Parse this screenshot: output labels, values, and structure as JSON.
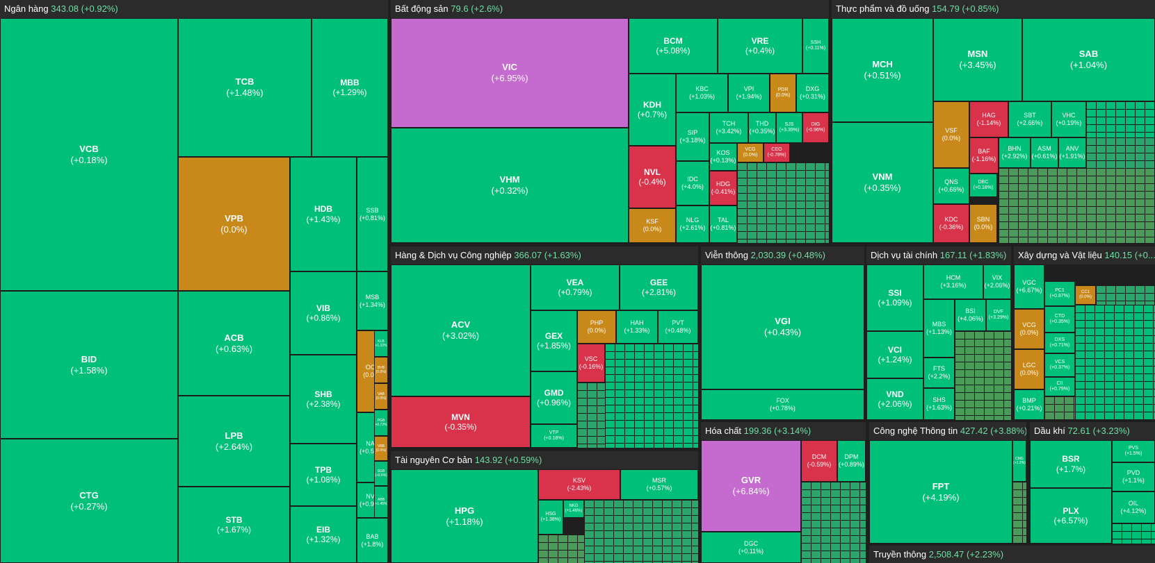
{
  "colors": {
    "up": "#00c079",
    "down": "#d8334a",
    "flat": "#c9891a",
    "ceiling": "#c56acf",
    "background": "#1f1f1f",
    "header_bg": "#2b2b2b",
    "header_value": "#6ee0a3"
  },
  "chart_data": {
    "type": "heatmap",
    "sectors": [
      {
        "key": "ngan-hang",
        "name": "Ngân hàng",
        "value": "343.08",
        "change": "(+0.92%)",
        "stocks": [
          {
            "symbol": "VCB",
            "change": "(+0.18%)",
            "status": "up"
          },
          {
            "symbol": "BID",
            "change": "(+1.58%)",
            "status": "up"
          },
          {
            "symbol": "CTG",
            "change": "(+0.27%)",
            "status": "up"
          },
          {
            "symbol": "TCB",
            "change": "(+1.48%)",
            "status": "up"
          },
          {
            "symbol": "MBB",
            "change": "(+1.29%)",
            "status": "up"
          },
          {
            "symbol": "VPB",
            "change": "(0.0%)",
            "status": "flat"
          },
          {
            "symbol": "HDB",
            "change": "(+1.43%)",
            "status": "up"
          },
          {
            "symbol": "SSB",
            "change": "(+0.81%)",
            "status": "up"
          },
          {
            "symbol": "ACB",
            "change": "(+0.63%)",
            "status": "up"
          },
          {
            "symbol": "VIB",
            "change": "(+0.86%)",
            "status": "up"
          },
          {
            "symbol": "MSB",
            "change": "(+1.34%)",
            "status": "up"
          },
          {
            "symbol": "OCB",
            "change": "(0.0%)",
            "status": "flat"
          },
          {
            "symbol": "LPB",
            "change": "(+2.64%)",
            "status": "up"
          },
          {
            "symbol": "SHB",
            "change": "(+2.38%)",
            "status": "up"
          },
          {
            "symbol": "NAB",
            "change": "(+0.59%)",
            "status": "up"
          },
          {
            "symbol": "TPB",
            "change": "(+1.08%)",
            "status": "up"
          },
          {
            "symbol": "STB",
            "change": "(+1.67%)",
            "status": "up"
          },
          {
            "symbol": "EIB",
            "change": "(+1.32%)",
            "status": "up"
          },
          {
            "symbol": "NVB",
            "change": "(+0.98%)",
            "status": "up"
          },
          {
            "symbol": "BAB",
            "change": "(+1.8%)",
            "status": "up"
          },
          {
            "symbol": "KLB",
            "change": "(+1.32%)",
            "status": "up"
          },
          {
            "symbol": "BVB",
            "change": "(0.0%)",
            "status": "flat"
          },
          {
            "symbol": "VAB",
            "change": "(0.0%)",
            "status": "flat"
          },
          {
            "symbol": "PGB",
            "change": "(+0.72%)",
            "status": "up"
          },
          {
            "symbol": "VBB",
            "change": "(0.0%)",
            "status": "flat"
          },
          {
            "symbol": "SGB",
            "change": "(+0.5%)",
            "status": "up"
          },
          {
            "symbol": "ABB",
            "change": "(+1.45%)",
            "status": "up"
          }
        ]
      },
      {
        "key": "bat-dong-san",
        "name": "Bất động sản",
        "value": "79.6",
        "change": "(+2.6%)",
        "stocks": [
          {
            "symbol": "VIC",
            "change": "(+6.95%)",
            "status": "ceiling"
          },
          {
            "symbol": "VHM",
            "change": "(+0.32%)",
            "status": "up"
          },
          {
            "symbol": "BCM",
            "change": "(+5.08%)",
            "status": "up"
          },
          {
            "symbol": "VRE",
            "change": "(+0.4%)",
            "status": "up"
          },
          {
            "symbol": "SSH",
            "change": "(+0.11%)",
            "status": "up"
          },
          {
            "symbol": "KDH",
            "change": "(+0.7%)",
            "status": "up"
          },
          {
            "symbol": "KBC",
            "change": "(+1.03%)",
            "status": "up"
          },
          {
            "symbol": "VPI",
            "change": "(+1.94%)",
            "status": "up"
          },
          {
            "symbol": "PDR",
            "change": "(0.0%)",
            "status": "flat"
          },
          {
            "symbol": "DXG",
            "change": "(+0.31%)",
            "status": "up"
          },
          {
            "symbol": "NVL",
            "change": "(-0.4%)",
            "status": "down"
          },
          {
            "symbol": "SIP",
            "change": "(+3.18%)",
            "status": "up"
          },
          {
            "symbol": "TCH",
            "change": "(+3.42%)",
            "status": "up"
          },
          {
            "symbol": "THD",
            "change": "(+0.35%)",
            "status": "up"
          },
          {
            "symbol": "SJS",
            "change": "(+3.39%)",
            "status": "up"
          },
          {
            "symbol": "DIG",
            "change": "(-0.96%)",
            "status": "down"
          },
          {
            "symbol": "KSF",
            "change": "(0.0%)",
            "status": "flat"
          },
          {
            "symbol": "IDC",
            "change": "(+4.0%)",
            "status": "up"
          },
          {
            "symbol": "NLG",
            "change": "(+2.61%)",
            "status": "up"
          },
          {
            "symbol": "KOS",
            "change": "(+0.13%)",
            "status": "up"
          },
          {
            "symbol": "VCG",
            "change": "(0.0%)",
            "status": "flat"
          },
          {
            "symbol": "CEO",
            "change": "(-0.78%)",
            "status": "down"
          },
          {
            "symbol": "HDG",
            "change": "(-0.41%)",
            "status": "down"
          },
          {
            "symbol": "TAL",
            "change": "(+0.81%)",
            "status": "up"
          }
        ]
      },
      {
        "key": "thuc-pham",
        "name": "Thực phẩm và đồ uống",
        "value": "154.79",
        "change": "(+0.85%)",
        "stocks": [
          {
            "symbol": "MCH",
            "change": "(+0.51%)",
            "status": "up"
          },
          {
            "symbol": "MSN",
            "change": "(+3.45%)",
            "status": "up"
          },
          {
            "symbol": "SAB",
            "change": "(+1.04%)",
            "status": "up"
          },
          {
            "symbol": "VNM",
            "change": "(+0.35%)",
            "status": "up"
          },
          {
            "symbol": "VSF",
            "change": "(0.0%)",
            "status": "flat"
          },
          {
            "symbol": "HAG",
            "change": "(-1.14%)",
            "status": "down"
          },
          {
            "symbol": "SBT",
            "change": "(+2.66%)",
            "status": "up"
          },
          {
            "symbol": "VHC",
            "change": "(+0.19%)",
            "status": "up"
          },
          {
            "symbol": "QNS",
            "change": "(+0.66%)",
            "status": "up"
          },
          {
            "symbol": "BAF",
            "change": "(-1.16%)",
            "status": "down"
          },
          {
            "symbol": "KDC",
            "change": "(-0.36%)",
            "status": "down"
          },
          {
            "symbol": "DBC",
            "change": "(+0.18%)",
            "status": "up"
          },
          {
            "symbol": "SBN",
            "change": "(0.0%)",
            "status": "flat"
          },
          {
            "symbol": "BHN",
            "change": "(+2.92%)",
            "status": "up"
          },
          {
            "symbol": "ASM",
            "change": "(+0.61%)",
            "status": "up"
          },
          {
            "symbol": "ANV",
            "change": "(+1.91%)",
            "status": "up"
          }
        ]
      },
      {
        "key": "cong-nghiep",
        "name": "Hàng & Dịch vụ Công nghiệp",
        "value": "366.07",
        "change": "(+1.63%)",
        "stocks": [
          {
            "symbol": "ACV",
            "change": "(+3.02%)",
            "status": "up"
          },
          {
            "symbol": "VEA",
            "change": "(+0.79%)",
            "status": "up"
          },
          {
            "symbol": "GEE",
            "change": "(+2.81%)",
            "status": "up"
          },
          {
            "symbol": "GEX",
            "change": "(+1.85%)",
            "status": "up"
          },
          {
            "symbol": "PHP",
            "change": "(0.0%)",
            "status": "flat"
          },
          {
            "symbol": "HAH",
            "change": "(+1.33%)",
            "status": "up"
          },
          {
            "symbol": "PVT",
            "change": "(+0.48%)",
            "status": "up"
          },
          {
            "symbol": "VSC",
            "change": "(-0.16%)",
            "status": "down"
          },
          {
            "symbol": "GMD",
            "change": "(+0.96%)",
            "status": "up"
          },
          {
            "symbol": "MVN",
            "change": "(-0.35%)",
            "status": "down"
          },
          {
            "symbol": "VTP",
            "change": "(+0.18%)",
            "status": "up"
          }
        ]
      },
      {
        "key": "vien-thong",
        "name": "Viễn thông",
        "value": "2,030.39",
        "change": "(+0.48%)",
        "stocks": [
          {
            "symbol": "VGI",
            "change": "(+0.43%)",
            "status": "up"
          },
          {
            "symbol": "FOX",
            "change": "(+0.78%)",
            "status": "up"
          }
        ]
      },
      {
        "key": "dich-vu-tai-chinh",
        "name": "Dịch vụ tài chính",
        "value": "167.11",
        "change": "(+1.83%)",
        "stocks": [
          {
            "symbol": "SSI",
            "change": "(+1.09%)",
            "status": "up"
          },
          {
            "symbol": "HCM",
            "change": "(+3.16%)",
            "status": "up"
          },
          {
            "symbol": "VIX",
            "change": "(+2.06%)",
            "status": "up"
          },
          {
            "symbol": "MBS",
            "change": "(+1.13%)",
            "status": "up"
          },
          {
            "symbol": "BSI",
            "change": "(+4.06%)",
            "status": "up"
          },
          {
            "symbol": "DVF",
            "change": "(+3.29%)",
            "status": "up"
          },
          {
            "symbol": "VCI",
            "change": "(+1.24%)",
            "status": "up"
          },
          {
            "symbol": "FTS",
            "change": "(+2.2%)",
            "status": "up"
          },
          {
            "symbol": "VND",
            "change": "(+2.06%)",
            "status": "up"
          },
          {
            "symbol": "SHS",
            "change": "(+1.63%)",
            "status": "up"
          }
        ]
      },
      {
        "key": "xay-dung",
        "name": "Xây dựng và Vật liệu",
        "value": "140.15",
        "change": "(+0...",
        "stocks": [
          {
            "symbol": "VGC",
            "change": "(+6.67%)",
            "status": "up"
          },
          {
            "symbol": "VCG",
            "change": "(0.0%)",
            "status": "flat"
          },
          {
            "symbol": "LGC",
            "change": "(0.0%)",
            "status": "flat"
          },
          {
            "symbol": "BMP",
            "change": "(+0.21%)",
            "status": "up"
          },
          {
            "symbol": "PC1",
            "change": "(+0.87%)",
            "status": "up"
          },
          {
            "symbol": "CTD",
            "change": "(+0.35%)",
            "status": "up"
          },
          {
            "symbol": "DXS",
            "change": "(+0.71%)",
            "status": "up"
          },
          {
            "symbol": "VCS",
            "change": "(+0.37%)",
            "status": "up"
          },
          {
            "symbol": "CII",
            "change": "(+0.79%)",
            "status": "up"
          },
          {
            "symbol": "CC1",
            "change": "(0.0%)",
            "status": "flat"
          }
        ]
      },
      {
        "key": "hoa-chat",
        "name": "Hóa chất",
        "value": "199.36",
        "change": "(+3.14%)",
        "stocks": [
          {
            "symbol": "GVR",
            "change": "(+6.84%)",
            "status": "ceiling"
          },
          {
            "symbol": "DCM",
            "change": "(-0.59%)",
            "status": "down"
          },
          {
            "symbol": "DPM",
            "change": "(+0.89%)",
            "status": "up"
          },
          {
            "symbol": "DGC",
            "change": "(+0.11%)",
            "status": "up"
          }
        ]
      },
      {
        "key": "cong-nghe",
        "name": "Công nghệ Thông tin",
        "value": "427.42",
        "change": "(+3.88%)",
        "stocks": [
          {
            "symbol": "FPT",
            "change": "(+4.19%)",
            "status": "up"
          },
          {
            "symbol": "CMG",
            "change": "(+1.2%)",
            "status": "up"
          }
        ]
      },
      {
        "key": "dau-khi",
        "name": "Dầu khí",
        "value": "72.61",
        "change": "(+3.23%)",
        "stocks": [
          {
            "symbol": "BSR",
            "change": "(+1.7%)",
            "status": "up"
          },
          {
            "symbol": "PVS",
            "change": "(+1.5%)",
            "status": "up"
          },
          {
            "symbol": "PVD",
            "change": "(+1.1%)",
            "status": "up"
          },
          {
            "symbol": "PLX",
            "change": "(+6.57%)",
            "status": "up"
          },
          {
            "symbol": "OIL",
            "change": "(+4.12%)",
            "status": "up"
          }
        ]
      },
      {
        "key": "tai-nguyen",
        "name": "Tài nguyên Cơ bản",
        "value": "143.92",
        "change": "(+0.59%)",
        "stocks": [
          {
            "symbol": "HPG",
            "change": "(+1.18%)",
            "status": "up"
          },
          {
            "symbol": "KSV",
            "change": "(-2.43%)",
            "status": "down"
          },
          {
            "symbol": "MSR",
            "change": "(+0.57%)",
            "status": "up"
          },
          {
            "symbol": "HSG",
            "change": "(+1.38%)",
            "status": "up"
          },
          {
            "symbol": "NKG",
            "change": "(+1.46%)",
            "status": "up"
          }
        ]
      },
      {
        "key": "truyen-thong",
        "name": "Truyền thông",
        "value": "2,508.47",
        "change": "(+2.23%)",
        "stocks": []
      }
    ]
  }
}
